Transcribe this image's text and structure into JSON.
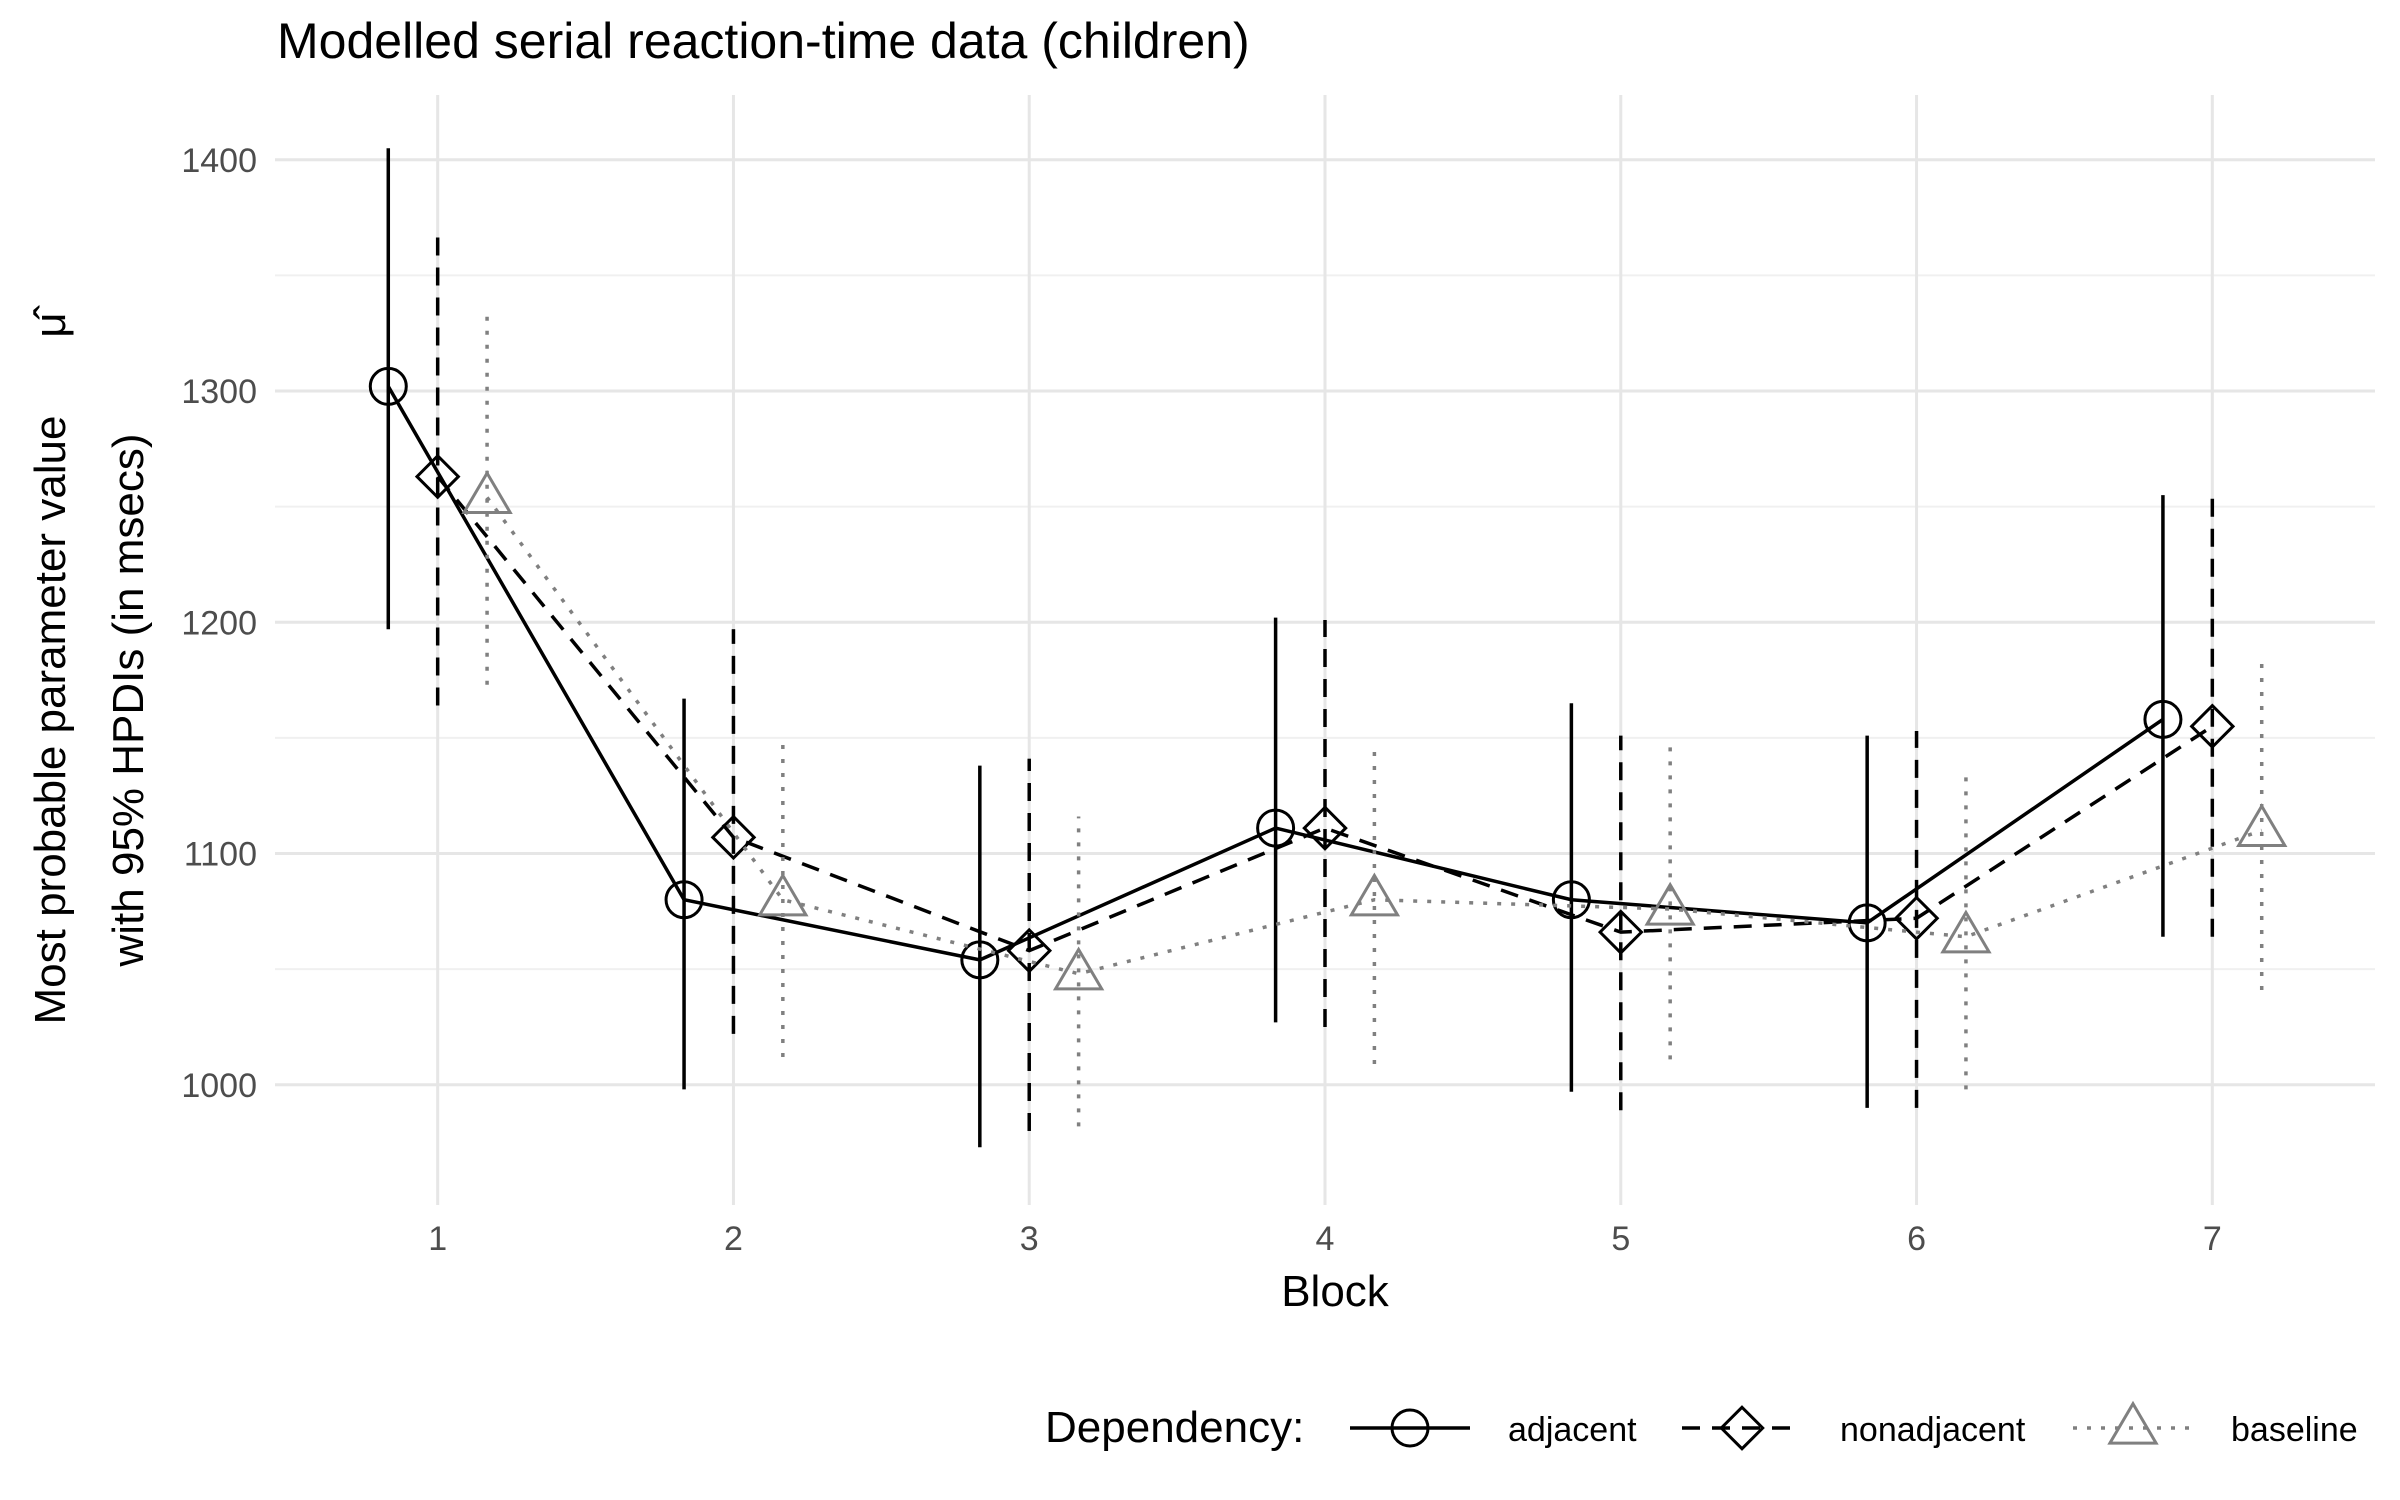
{
  "chart_data": {
    "type": "line",
    "title": "Modelled serial reaction-time data (children)",
    "xlabel": "Block",
    "ylabel_line1": "Most probable parameter value",
    "ylabel_symbol": "μ̂",
    "ylabel_line2": "with 95% HPDIs (in msecs)",
    "x": [
      1,
      2,
      3,
      4,
      5,
      6,
      7
    ],
    "x_tick_labels": [
      "1",
      "2",
      "3",
      "4",
      "5",
      "6",
      "7"
    ],
    "xlim": [
      0.45,
      7.55
    ],
    "ylim": [
      948,
      1428
    ],
    "y_ticks": [
      1000,
      1100,
      1200,
      1300,
      1400
    ],
    "y_tick_labels": [
      "1000",
      "1100",
      "1200",
      "1300",
      "1400"
    ],
    "grid": true,
    "legend": {
      "title": "Dependency:",
      "position": "bottom"
    },
    "series": [
      {
        "name": "adjacent",
        "marker": "circle",
        "linestyle": "solid",
        "color": "#000000",
        "dodge": -0.167,
        "values": [
          1302,
          1080,
          1054,
          1111,
          1080,
          1070,
          1158
        ],
        "lower": [
          1197,
          998,
          973,
          1027,
          997,
          990,
          1064
        ],
        "upper": [
          1405,
          1167,
          1138,
          1202,
          1165,
          1151,
          1255
        ]
      },
      {
        "name": "nonadjacent",
        "marker": "diamond",
        "linestyle": "dashed",
        "color": "#000000",
        "dodge": 0,
        "values": [
          1263,
          1107,
          1058,
          1111,
          1066,
          1072,
          1155
        ],
        "lower": [
          1164,
          1022,
          980,
          1025,
          989,
          990,
          1064
        ],
        "upper": [
          1368,
          1197,
          1141,
          1201,
          1151,
          1153,
          1256
        ]
      },
      {
        "name": "baseline",
        "marker": "triangle",
        "linestyle": "dotted",
        "color": "#808080",
        "dodge": 0.167,
        "values": [
          1254,
          1080,
          1048,
          1080,
          1076,
          1064,
          1110
        ],
        "lower": [
          1173,
          1012,
          982,
          1009,
          1011,
          998,
          1041
        ],
        "upper": [
          1335,
          1147,
          1116,
          1148,
          1146,
          1133,
          1182
        ]
      }
    ]
  }
}
